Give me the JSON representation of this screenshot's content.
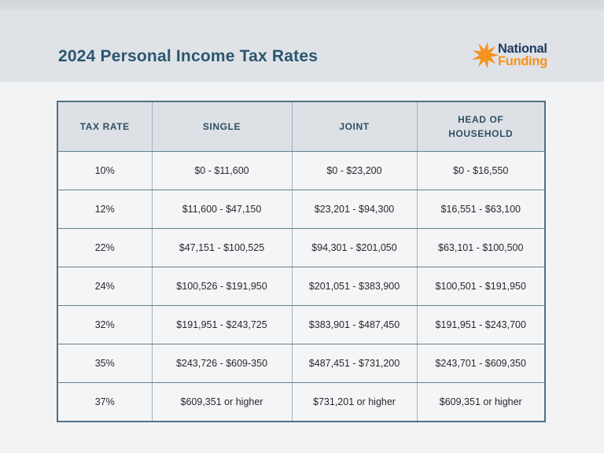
{
  "page": {
    "title": "2024 Personal Income Tax Rates"
  },
  "logo": {
    "line1": "National",
    "line2": "Funding",
    "icon": "burst-icon"
  },
  "colors": {
    "title-color": "#2b5670",
    "header-bg": "#dde1e5",
    "header-text": "#2e4f63",
    "cell-bg": "#f4f5f6",
    "cell-text": "#26292d",
    "logo-navy": "#1e3a5f",
    "logo-orange": "#f6921e"
  },
  "chart_data": {
    "type": "table",
    "title": "2024 Personal Income Tax Rates",
    "columns": [
      "TAX RATE",
      "SINGLE",
      "JOINT",
      "HEAD OF HOUSEHOLD"
    ],
    "rows": [
      [
        "10%",
        "$0 - $11,600",
        "$0 - $23,200",
        "$0 - $16,550"
      ],
      [
        "12%",
        "$11,600 - $47,150",
        "$23,201 - $94,300",
        "$16,551 - $63,100"
      ],
      [
        "22%",
        "$47,151 - $100,525",
        "$94,301 - $201,050",
        "$63,101 - $100,500"
      ],
      [
        "24%",
        "$100,526 - $191,950",
        "$201,051 - $383,900",
        "$100,501 - $191,950"
      ],
      [
        "32%",
        "$191,951 - $243,725",
        "$383,901 - $487,450",
        "$191,951 - $243,700"
      ],
      [
        "35%",
        "$243,726 - $609-350",
        "$487,451 - $731,200",
        "$243,701 - $609,350"
      ],
      [
        "37%",
        "$609,351 or higher",
        "$731,201 or higher",
        "$609,351 or higher"
      ]
    ]
  }
}
